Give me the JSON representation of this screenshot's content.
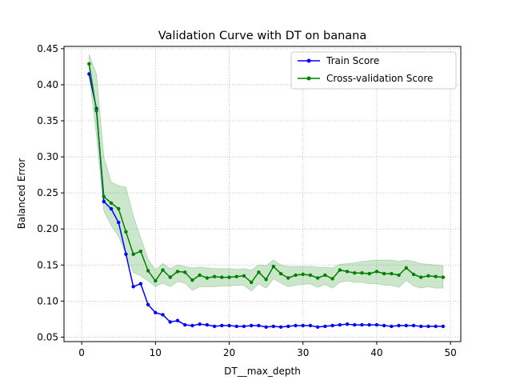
{
  "chart_data": {
    "type": "line",
    "title": "Validation Curve with DT on banana",
    "xlabel": "DT__max_depth",
    "ylabel": "Balanced Error",
    "xlim": [
      -2.4,
      51.4
    ],
    "ylim": [
      0.0438,
      0.4532
    ],
    "xticks": [
      0,
      10,
      20,
      30,
      40,
      50
    ],
    "yticks": [
      0.05,
      0.1,
      0.15,
      0.2,
      0.25,
      0.3,
      0.35,
      0.4,
      0.45
    ],
    "ytick_labels": [
      "0.05",
      "0.10",
      "0.15",
      "0.20",
      "0.25",
      "0.30",
      "0.35",
      "0.40",
      "0.45"
    ],
    "grid": true,
    "legend_position": "top-right",
    "x": [
      1,
      2,
      3,
      4,
      5,
      6,
      7,
      8,
      9,
      10,
      11,
      12,
      13,
      14,
      15,
      16,
      17,
      18,
      19,
      20,
      21,
      22,
      23,
      24,
      25,
      26,
      27,
      28,
      29,
      30,
      31,
      32,
      33,
      34,
      35,
      36,
      37,
      38,
      39,
      40,
      41,
      42,
      43,
      44,
      45,
      46,
      47,
      48,
      49
    ],
    "series": [
      {
        "name": "Train Score",
        "color": "#0000ff",
        "marker": "dot",
        "values": [
          0.415,
          0.367,
          0.238,
          0.228,
          0.209,
          0.165,
          0.12,
          0.124,
          0.095,
          0.084,
          0.081,
          0.071,
          0.073,
          0.067,
          0.066,
          0.068,
          0.067,
          0.065,
          0.066,
          0.066,
          0.065,
          0.065,
          0.066,
          0.066,
          0.064,
          0.065,
          0.064,
          0.065,
          0.066,
          0.066,
          0.066,
          0.064,
          0.065,
          0.066,
          0.067,
          0.068,
          0.067,
          0.067,
          0.067,
          0.067,
          0.066,
          0.065,
          0.066,
          0.066,
          0.066,
          0.065,
          0.065,
          0.065,
          0.065
        ]
      },
      {
        "name": "Cross-validation Score",
        "color": "#008000",
        "marker": "dot",
        "values": [
          0.429,
          0.364,
          0.245,
          0.236,
          0.228,
          0.196,
          0.165,
          0.169,
          0.142,
          0.128,
          0.143,
          0.133,
          0.141,
          0.14,
          0.129,
          0.136,
          0.132,
          0.134,
          0.133,
          0.133,
          0.134,
          0.135,
          0.126,
          0.14,
          0.13,
          0.148,
          0.138,
          0.132,
          0.136,
          0.137,
          0.136,
          0.132,
          0.136,
          0.131,
          0.143,
          0.141,
          0.139,
          0.139,
          0.138,
          0.141,
          0.138,
          0.138,
          0.136,
          0.146,
          0.137,
          0.133,
          0.135,
          0.134,
          0.133
        ],
        "band_upper": [
          0.442,
          0.415,
          0.3,
          0.265,
          0.26,
          0.258,
          0.218,
          0.188,
          0.158,
          0.143,
          0.152,
          0.145,
          0.15,
          0.148,
          0.146,
          0.147,
          0.146,
          0.145,
          0.145,
          0.145,
          0.144,
          0.145,
          0.143,
          0.15,
          0.149,
          0.157,
          0.15,
          0.148,
          0.148,
          0.148,
          0.148,
          0.147,
          0.147,
          0.146,
          0.151,
          0.152,
          0.153,
          0.155,
          0.156,
          0.157,
          0.157,
          0.157,
          0.155,
          0.157,
          0.155,
          0.152,
          0.151,
          0.15,
          0.149
        ],
        "band_lower": [
          0.415,
          0.33,
          0.225,
          0.205,
          0.19,
          0.165,
          0.14,
          0.135,
          0.128,
          0.12,
          0.125,
          0.12,
          0.127,
          0.125,
          0.115,
          0.12,
          0.12,
          0.12,
          0.121,
          0.121,
          0.122,
          0.122,
          0.114,
          0.124,
          0.118,
          0.131,
          0.125,
          0.12,
          0.122,
          0.123,
          0.124,
          0.119,
          0.123,
          0.118,
          0.126,
          0.128,
          0.126,
          0.126,
          0.124,
          0.124,
          0.122,
          0.122,
          0.119,
          0.129,
          0.121,
          0.118,
          0.12,
          0.118,
          0.118
        ],
        "band_color": "#008000",
        "band_opacity": 0.2
      }
    ]
  }
}
